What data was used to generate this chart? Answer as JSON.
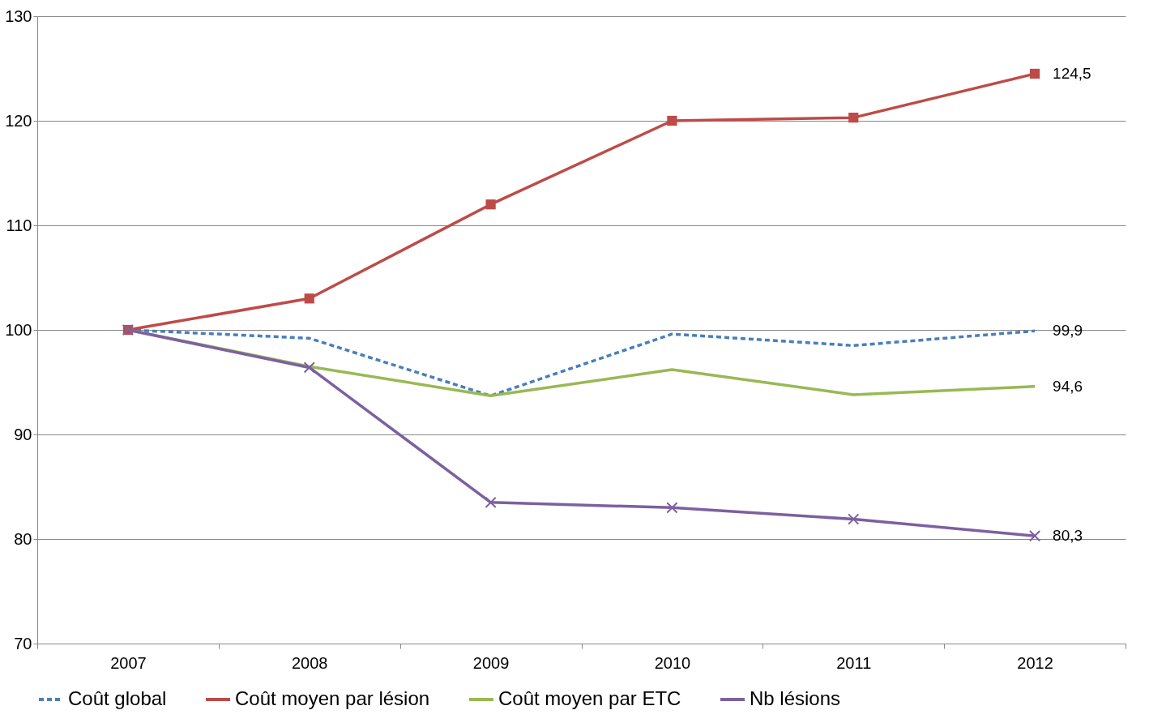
{
  "chart_data": {
    "type": "line",
    "categories": [
      "2007",
      "2008",
      "2009",
      "2010",
      "2011",
      "2012"
    ],
    "series": [
      {
        "name": "Coût global",
        "color": "#4a7ebb",
        "line_style": "dashed",
        "marker": "none",
        "values": [
          100,
          99.2,
          93.7,
          99.6,
          98.5,
          99.9
        ],
        "value_labels": [
          null,
          null,
          null,
          null,
          null,
          "99,9"
        ]
      },
      {
        "name": "Coût moyen par lésion",
        "color": "#be4b48",
        "line_style": "solid",
        "marker": "square",
        "values": [
          100,
          103.0,
          112.0,
          120.0,
          120.3,
          124.5
        ],
        "value_labels": [
          null,
          null,
          null,
          null,
          null,
          "124,5"
        ]
      },
      {
        "name": "Coût moyen par ETC",
        "color": "#98b954",
        "line_style": "solid",
        "marker": "none",
        "values": [
          100,
          96.5,
          93.7,
          96.2,
          93.8,
          94.6
        ],
        "value_labels": [
          null,
          null,
          null,
          null,
          null,
          "94,6"
        ]
      },
      {
        "name": "Nb lésions",
        "color": "#7d60a0",
        "line_style": "solid",
        "marker": "cross",
        "values": [
          100,
          96.4,
          83.5,
          83.0,
          81.9,
          80.3
        ],
        "value_labels": [
          null,
          null,
          null,
          null,
          null,
          "80,3"
        ]
      }
    ],
    "ylim": [
      70,
      130
    ],
    "yticks": [
      70,
      80,
      90,
      100,
      110,
      120,
      130
    ],
    "grid": "y",
    "legend": "bottom"
  }
}
